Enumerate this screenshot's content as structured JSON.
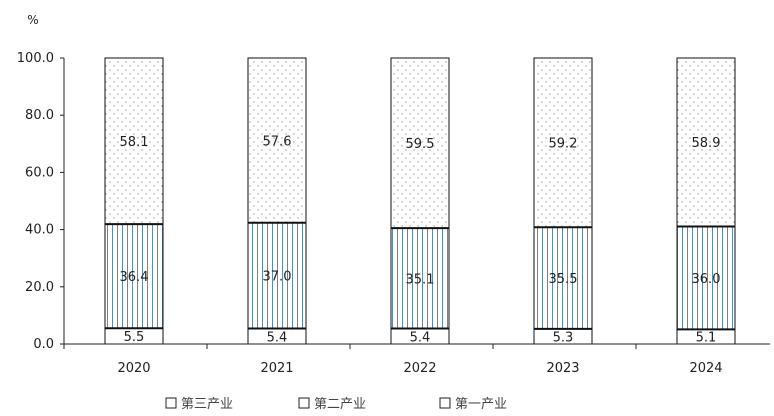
{
  "chart_data": {
    "type": "bar",
    "stacked": true,
    "categories": [
      "2020",
      "2021",
      "2022",
      "2023",
      "2024"
    ],
    "series": [
      {
        "name": "第一产业",
        "values": [
          5.5,
          5.4,
          5.4,
          5.3,
          5.1
        ],
        "fill": "plain"
      },
      {
        "name": "第二产业",
        "values": [
          36.4,
          37.0,
          35.1,
          35.5,
          36.0
        ],
        "fill": "vertical-lines"
      },
      {
        "name": "第三产业",
        "values": [
          58.1,
          57.6,
          59.5,
          59.2,
          58.9
        ],
        "fill": "dots"
      }
    ],
    "unit": "%",
    "ylim": [
      0,
      100
    ],
    "yticks": [
      "0.0",
      "20.0",
      "40.0",
      "60.0",
      "80.0",
      "100.0"
    ],
    "legend_order": [
      "第三产业",
      "第二产业",
      "第一产业"
    ],
    "legend": "bottom",
    "grid": false,
    "colors": {
      "line_pattern": "#5a8ab0",
      "dot_pattern": "#9a9a9a",
      "outline": "#111111"
    }
  }
}
